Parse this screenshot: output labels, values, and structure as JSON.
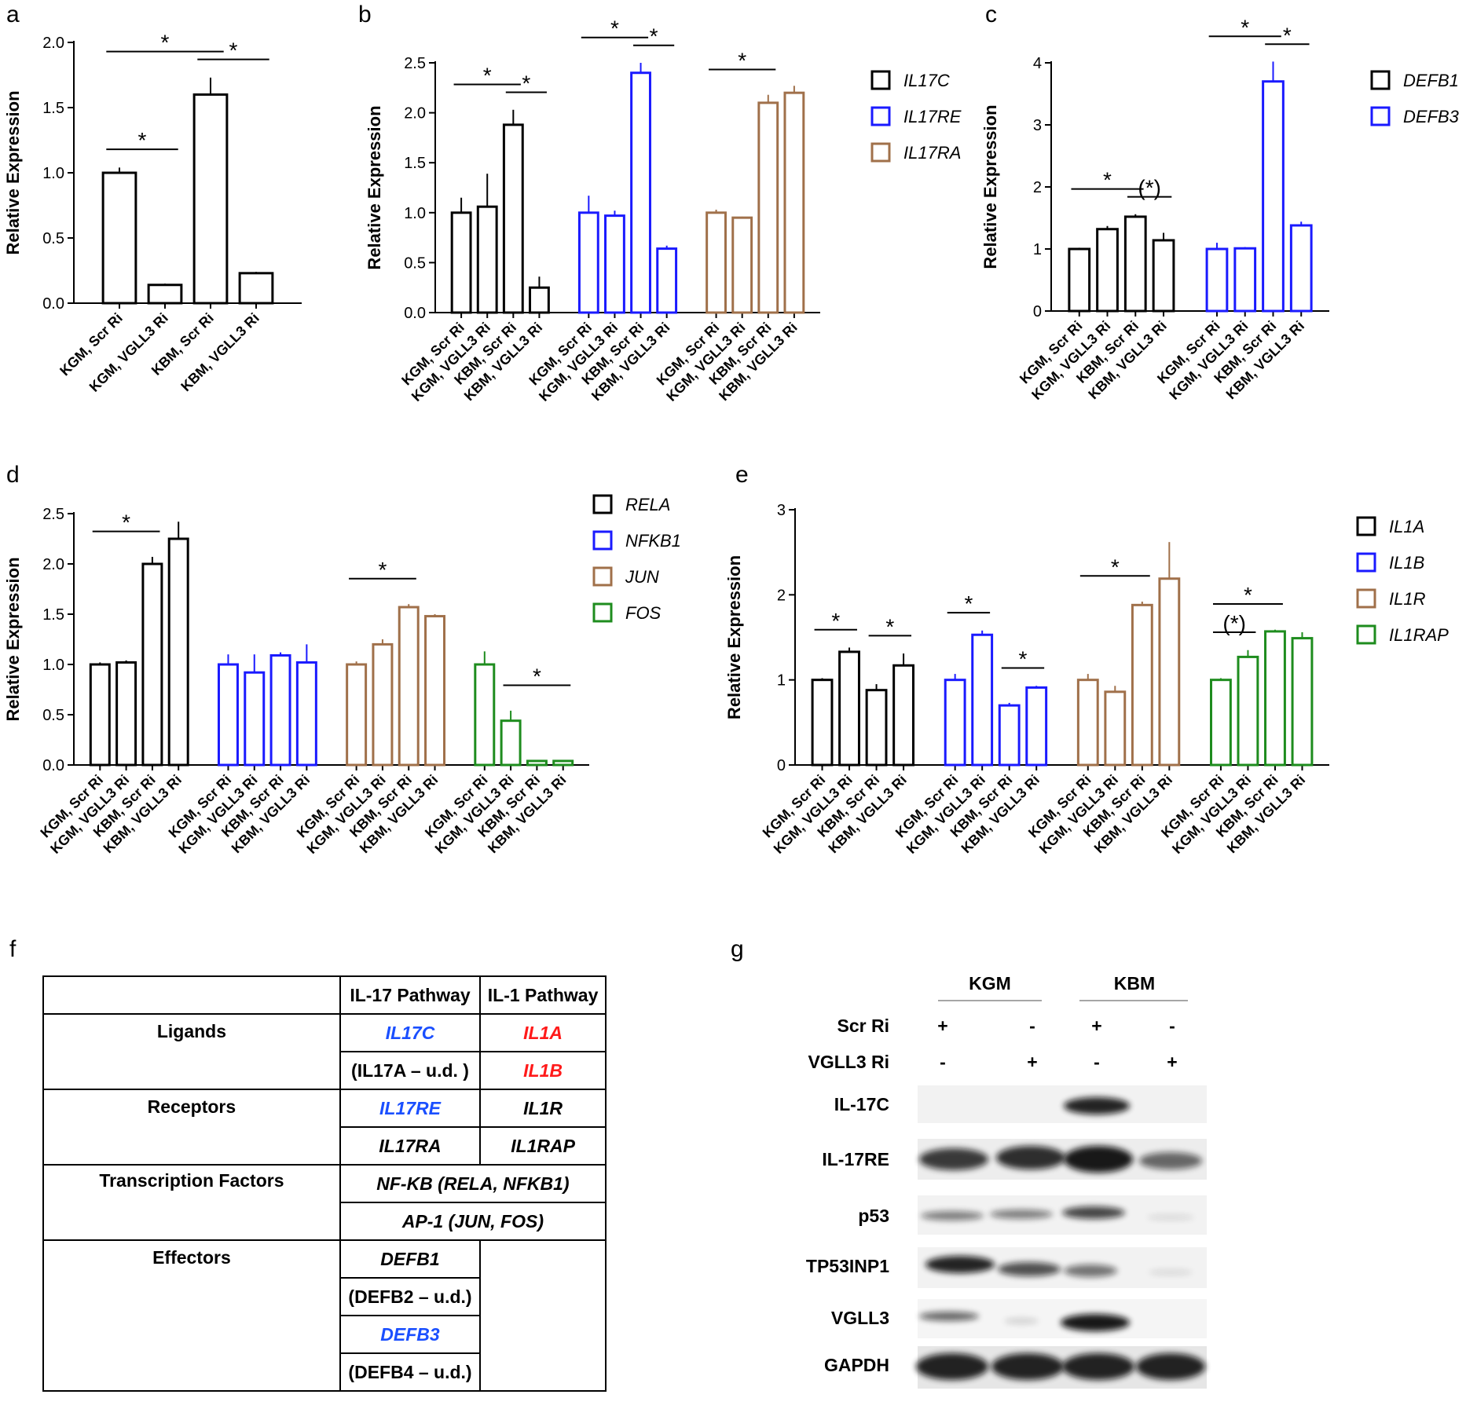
{
  "chart_data": [
    {
      "type": "bar",
      "panel": "a",
      "ylabel": "Relative Expression",
      "categories": [
        "KGM, Scr Ri",
        "KGM, VGLL3 Ri",
        "KBM, Scr Ri",
        "KBM, VGLL3 Ri"
      ],
      "values": [
        1.0,
        0.14,
        1.6,
        0.23
      ],
      "errors": [
        0.04,
        0.01,
        0.13,
        0.01
      ],
      "color": "#000000",
      "ylim": [
        0,
        2
      ],
      "yticks": [
        {
          "value": 0,
          "label": "0.0"
        },
        0.5,
        {
          "value": 1,
          "label": "1.0"
        },
        1.5,
        {
          "value": 2,
          "label": "2.0"
        }
      ],
      "significance": [
        {
          "from": 0,
          "to": 1,
          "label": "*"
        },
        {
          "from": 0,
          "to": 2,
          "label": "*"
        },
        {
          "from": 2,
          "to": 3,
          "label": "*"
        }
      ]
    },
    {
      "type": "bar",
      "panel": "b",
      "ylabel": "Relative Expression",
      "legend": "right",
      "categories": [
        "KGM, Scr Ri",
        "KGM, VGLL3 Ri",
        "KBM, Scr Ri",
        "KBM, VGLL3 Ri"
      ],
      "series": [
        {
          "name": "IL17C",
          "color": "#000000",
          "values": [
            1.0,
            1.06,
            1.88,
            0.25
          ],
          "errors": [
            0.15,
            0.33,
            0.15,
            0.11
          ]
        },
        {
          "name": "IL17RE",
          "color": "#1a1aff",
          "values": [
            1.0,
            0.97,
            2.4,
            0.64
          ],
          "errors": [
            0.17,
            0.05,
            0.1,
            0.03
          ]
        },
        {
          "name": "IL17RA",
          "color": "#a0704a",
          "values": [
            1.0,
            0.95,
            2.1,
            2.2
          ],
          "errors": [
            0.03,
            0.01,
            0.08,
            0.07
          ]
        }
      ],
      "ylim": [
        0,
        2.5
      ],
      "yticks": [
        {
          "value": 0,
          "label": "0.0"
        },
        0.5,
        {
          "value": 1,
          "label": "1.0"
        },
        1.5,
        {
          "value": 2,
          "label": "2.0"
        },
        2.5
      ],
      "significance": [
        {
          "series": 0,
          "from": 0,
          "to": 2,
          "label": "*"
        },
        {
          "series": 0,
          "from": 2,
          "to": 3,
          "label": "*"
        },
        {
          "series": 1,
          "from": 0,
          "to": 2,
          "label": "*"
        },
        {
          "series": 1,
          "from": 2,
          "to": 3,
          "label": "*"
        },
        {
          "series": 2,
          "from": 0,
          "to": 2,
          "label": "*"
        }
      ]
    },
    {
      "type": "bar",
      "panel": "c",
      "ylabel": "Relative Expression",
      "legend": "right",
      "categories": [
        "KGM, Scr Ri",
        "KGM, VGLL3 Ri",
        "KBM, Scr Ri",
        "KBM, VGLL3 Ri"
      ],
      "series": [
        {
          "name": "DEFB1",
          "color": "#000000",
          "values": [
            1.0,
            1.32,
            1.52,
            1.14
          ],
          "errors": [
            0.02,
            0.05,
            0.04,
            0.12
          ]
        },
        {
          "name": "DEFB3",
          "color": "#1a1aff",
          "values": [
            1.0,
            1.01,
            3.7,
            1.38
          ],
          "errors": [
            0.1,
            0.02,
            0.32,
            0.06
          ]
        }
      ],
      "ylim": [
        0,
        4
      ],
      "yticks": [
        0,
        1,
        2,
        3,
        4
      ],
      "significance": [
        {
          "series": 0,
          "from": 0,
          "to": 2,
          "label": "*"
        },
        {
          "series": 0,
          "from": 2,
          "to": 3,
          "label": "(*)"
        },
        {
          "series": 1,
          "from": 0,
          "to": 2,
          "label": "*"
        },
        {
          "series": 1,
          "from": 2,
          "to": 3,
          "label": "*"
        }
      ]
    },
    {
      "type": "bar",
      "panel": "d",
      "ylabel": "Relative Expression",
      "legend": "right",
      "categories": [
        "KGM, Scr Ri",
        "KGM, VGLL3 Ri",
        "KBM, Scr Ri",
        "KBM, VGLL3 Ri"
      ],
      "series": [
        {
          "name": "RELA",
          "color": "#000000",
          "values": [
            1.0,
            1.02,
            2.0,
            2.25
          ],
          "errors": [
            0.02,
            0.02,
            0.07,
            0.17
          ]
        },
        {
          "name": "NFKB1",
          "color": "#1a1aff",
          "values": [
            1.0,
            0.92,
            1.09,
            1.02
          ],
          "errors": [
            0.1,
            0.18,
            0.03,
            0.18
          ]
        },
        {
          "name": "JUN",
          "color": "#a0704a",
          "values": [
            1.0,
            1.2,
            1.57,
            1.48
          ],
          "errors": [
            0.03,
            0.05,
            0.03,
            0.02
          ]
        },
        {
          "name": "FOS",
          "color": "#1e8c1e",
          "values": [
            1.0,
            0.44,
            0.04,
            0.04
          ],
          "errors": [
            0.13,
            0.1,
            0.005,
            0.005
          ]
        }
      ],
      "ylim": [
        0,
        2.5
      ],
      "yticks": [
        {
          "value": 0,
          "label": "0.0"
        },
        0.5,
        {
          "value": 1,
          "label": "1.0"
        },
        1.5,
        {
          "value": 2,
          "label": "2.0"
        },
        2.5
      ],
      "significance": [
        {
          "series": 0,
          "from": 0,
          "to": 2,
          "label": "*"
        },
        {
          "series": 2,
          "from": 0,
          "to": 2,
          "label": "*"
        },
        {
          "series": 3,
          "from": 1,
          "to": 3,
          "label": "*"
        }
      ]
    },
    {
      "type": "bar",
      "panel": "e",
      "ylabel": "Relative Expression",
      "legend": "right",
      "categories": [
        "KGM, Scr Ri",
        "KGM, VGLL3 Ri",
        "KBM, Scr Ri",
        "KBM, VGLL3 Ri"
      ],
      "series": [
        {
          "name": "IL1A",
          "color": "#000000",
          "values": [
            1.0,
            1.33,
            0.88,
            1.17
          ],
          "errors": [
            0.02,
            0.05,
            0.07,
            0.14
          ]
        },
        {
          "name": "IL1B",
          "color": "#1a1aff",
          "values": [
            1.0,
            1.53,
            0.7,
            0.91
          ],
          "errors": [
            0.07,
            0.05,
            0.03,
            0.02
          ]
        },
        {
          "name": "IL1R",
          "color": "#a0704a",
          "values": [
            1.0,
            0.86,
            1.88,
            2.19
          ],
          "errors": [
            0.07,
            0.07,
            0.04,
            0.43
          ]
        },
        {
          "name": "IL1RAP",
          "color": "#1e8c1e",
          "values": [
            1.0,
            1.27,
            1.57,
            1.49
          ],
          "errors": [
            0.02,
            0.08,
            0.02,
            0.07
          ]
        }
      ],
      "ylim": [
        0,
        3
      ],
      "yticks": [
        0,
        1,
        2,
        3
      ],
      "significance": [
        {
          "series": 0,
          "from": 0,
          "to": 1,
          "label": "*"
        },
        {
          "series": 0,
          "from": 2,
          "to": 3,
          "label": "*"
        },
        {
          "series": 1,
          "from": 0,
          "to": 1,
          "label": "*"
        },
        {
          "series": 1,
          "from": 2,
          "to": 3,
          "label": "*"
        },
        {
          "series": 2,
          "from": 0,
          "to": 2,
          "label": "*"
        },
        {
          "series": 3,
          "from": 0,
          "to": 1,
          "label": "(*)"
        },
        {
          "series": 3,
          "from": 0,
          "to": 2,
          "label": "*"
        }
      ]
    }
  ],
  "table": {
    "label": "f",
    "header": [
      "IL-17 Pathway",
      "IL-1 Pathway"
    ],
    "sections": [
      {
        "name": "Ligands",
        "rows": [
          [
            "IL17C",
            "IL1A"
          ],
          [
            "(IL17A – u.d. )",
            "IL1B"
          ]
        ]
      },
      {
        "name": "Receptors",
        "rows": [
          [
            "IL17RE",
            "IL1R"
          ],
          [
            "IL17RA",
            "IL1RAP"
          ]
        ]
      },
      {
        "name": "Transcription Factors",
        "rows": [
          [
            "NF-KB (RELA, NFKB1)"
          ],
          [
            "AP-1 (JUN, FOS)"
          ]
        ]
      },
      {
        "name": "Effectors",
        "rows": [
          [
            "DEFB1"
          ],
          [
            "(DEFB2 – u.d.)"
          ],
          [
            "DEFB3"
          ],
          [
            "(DEFB4 – u.d.)"
          ]
        ]
      }
    ]
  },
  "blot": {
    "label": "g",
    "groups": [
      "KGM",
      "KBM"
    ],
    "treatments": [
      {
        "label": "Scr Ri",
        "signs": [
          "+",
          "-",
          "+",
          "-"
        ]
      },
      {
        "label": "VGLL3 Ri",
        "signs": [
          "-",
          "+",
          "-",
          "+"
        ]
      }
    ],
    "bands": [
      "IL-17C",
      "IL-17RE",
      "p53",
      "TP53INP1",
      "VGLL3",
      "GAPDH"
    ]
  }
}
